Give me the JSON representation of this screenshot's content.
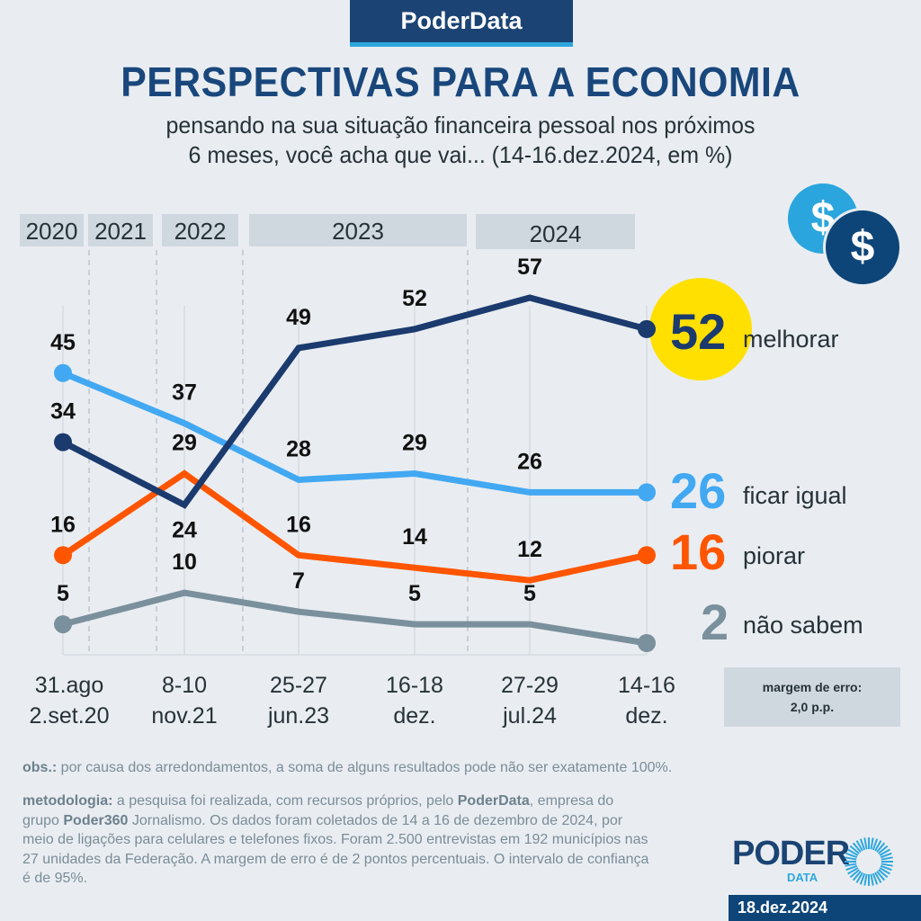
{
  "header": {
    "brand": "PoderData",
    "title": "PERSPECTIVAS PARA A ECONOMIA",
    "subtitle_line1": "pensando na sua situação financeira pessoal nos próximos",
    "subtitle_line2": "6 meses, você acha que vai... (14-16.dez.2024, em %)"
  },
  "icons": {
    "coin_symbol": "$"
  },
  "years": [
    "2020",
    "2021",
    "2022",
    "2023",
    "2024"
  ],
  "chart_data": {
    "type": "line",
    "title": "PERSPECTIVAS PARA A ECONOMIA",
    "xlabel": "",
    "ylabel": "%",
    "x": [
      [
        "31.ago",
        "2.set.20"
      ],
      [
        "8-10",
        "nov.21"
      ],
      [
        "25-27",
        "jun.23"
      ],
      [
        "16-18",
        "dez."
      ],
      [
        "27-29",
        "jul.24"
      ],
      [
        "14-16",
        "dez."
      ]
    ],
    "ylim": [
      2,
      57
    ],
    "grid": false,
    "legend": "right-end labels",
    "series": [
      {
        "name": "melhorar",
        "color": "#1b3a6e",
        "values": [
          34,
          24,
          49,
          52,
          57,
          52
        ]
      },
      {
        "name": "ficar igual",
        "color": "#42a8f2",
        "values": [
          45,
          37,
          28,
          29,
          26,
          26
        ]
      },
      {
        "name": "piorar",
        "color": "#ff5500",
        "values": [
          16,
          29,
          16,
          14,
          12,
          16
        ]
      },
      {
        "name": "não sabem",
        "color": "#7a909c",
        "values": [
          5,
          10,
          7,
          5,
          5,
          2
        ]
      }
    ],
    "highlight_color": "#ffe000"
  },
  "end_labels": [
    {
      "value": "52",
      "label": "melhorar"
    },
    {
      "value": "26",
      "label": "ficar igual"
    },
    {
      "value": "16",
      "label": "piorar"
    },
    {
      "value": "2",
      "label": "não sabem"
    }
  ],
  "x_labels": [
    {
      "line1": "31.ago",
      "line2": "2.set.20"
    },
    {
      "line1": "8-10",
      "line2": "nov.21"
    },
    {
      "line1": "25-27",
      "line2": "jun.23"
    },
    {
      "line1": "16-18",
      "line2": "dez."
    },
    {
      "line1": "27-29",
      "line2": "jul.24"
    },
    {
      "line1": "14-16",
      "line2": "dez."
    }
  ],
  "margin_box": {
    "line1": "margem de erro:",
    "line2": "2,0 p.p."
  },
  "footer": {
    "obs_label": "obs.:",
    "obs_text": " por causa dos arredondamentos, a soma de alguns resultados pode não ser exatamente 100%.",
    "method_label": "metodologia:",
    "method_t1": " a pesquisa foi realizada, com recursos próprios, pelo ",
    "method_b1": "PoderData",
    "method_t2": ", empresa do grupo ",
    "method_b2": "Poder360",
    "method_t3": " Jornalismo. Os dados foram coletados de 14 a 16 de dezembro de 2024, por meio de ligações para celulares e telefones fixos. Foram 2.500 entrevistas em 192 municípios nas 27 unidades da Federação. A margem de erro é de 2 pontos percentuais. O intervalo de confiança é de 95%.",
    "logo_main": "PODER",
    "logo_sub": "DATA",
    "date": "18.dez.2024"
  }
}
